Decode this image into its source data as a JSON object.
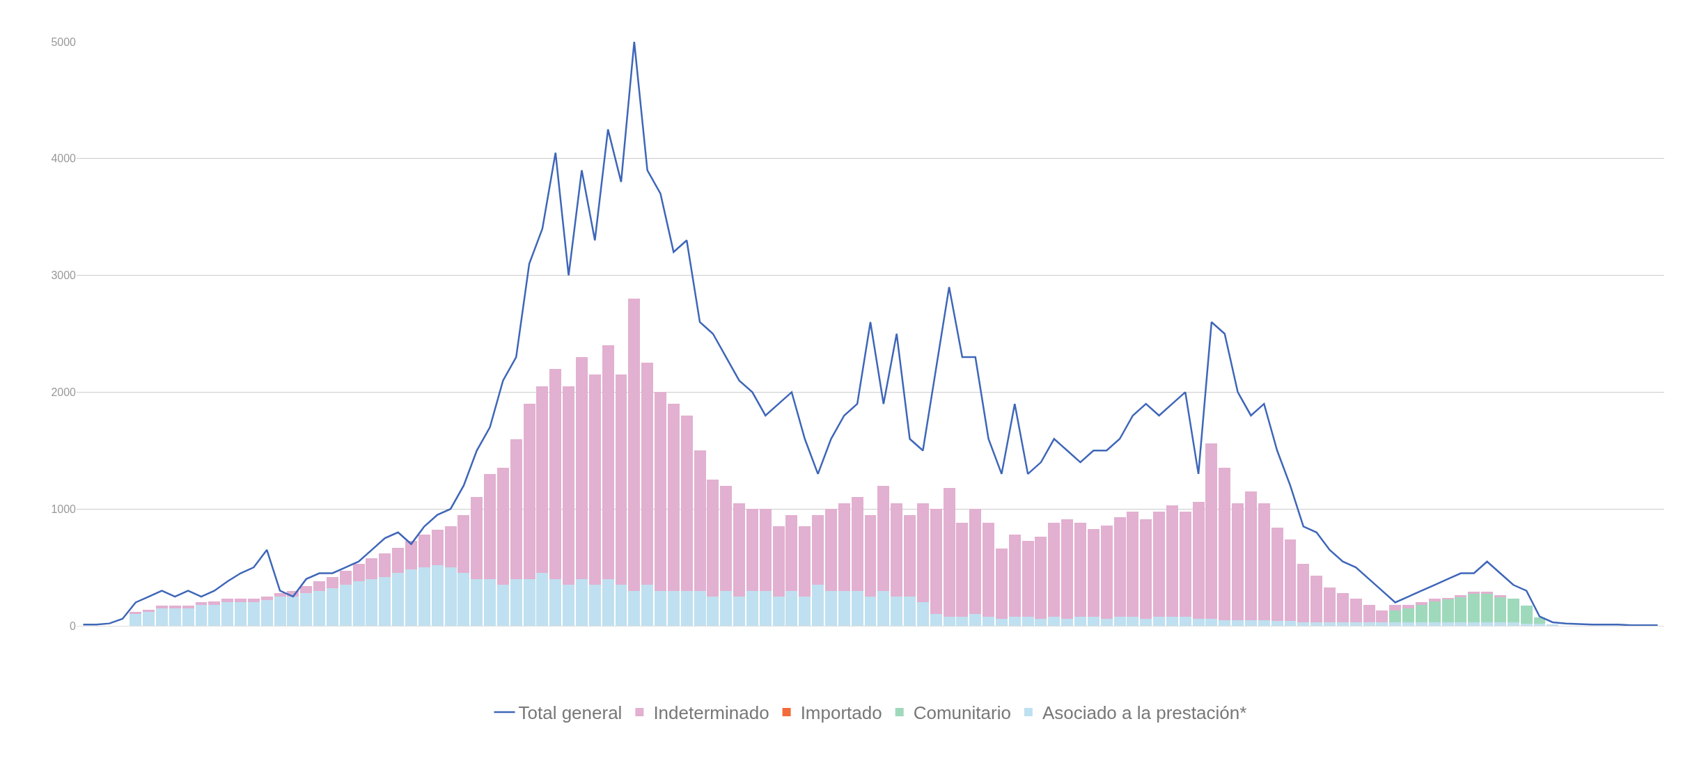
{
  "chart_data": {
    "type": "bar",
    "categories": [
      null,
      null,
      null,
      null,
      null,
      null,
      null,
      null,
      null,
      null,
      null,
      null,
      null,
      null,
      null,
      null,
      null,
      null,
      null,
      null,
      null,
      null,
      null,
      null,
      null,
      null,
      null,
      null,
      null,
      null,
      null,
      null,
      null,
      null,
      null,
      null,
      null,
      null,
      null,
      null,
      null,
      null,
      null,
      null,
      null,
      null,
      null,
      null,
      null,
      null,
      null,
      null,
      null,
      null,
      null,
      null,
      null,
      null,
      null,
      null,
      null,
      null,
      null,
      null,
      null,
      null,
      null,
      null,
      null,
      null,
      null,
      null,
      null,
      null,
      null,
      null,
      null,
      null,
      null,
      null,
      null,
      null,
      null,
      null,
      null,
      null,
      null,
      null,
      null,
      null,
      null,
      null,
      null,
      null,
      null,
      null,
      null,
      null,
      null,
      null,
      null,
      null,
      null,
      null,
      null,
      null,
      null,
      null,
      null,
      null,
      null,
      null,
      null,
      null,
      null,
      null,
      null,
      null,
      null,
      null,
      null
    ],
    "ylim": [
      0,
      5000
    ],
    "stacked": true,
    "yticks": [
      0,
      1000,
      2000,
      3000,
      4000,
      5000
    ],
    "grid": "y",
    "legend": "bottom",
    "series": [
      {
        "name": "Asociado a la prestación*",
        "color": "#bfe0f0",
        "values": [
          0,
          0,
          0,
          0,
          100,
          120,
          150,
          150,
          150,
          180,
          180,
          200,
          200,
          200,
          220,
          250,
          250,
          280,
          300,
          320,
          350,
          380,
          400,
          420,
          450,
          480,
          500,
          520,
          500,
          450,
          400,
          400,
          350,
          400,
          400,
          450,
          400,
          350,
          400,
          350,
          400,
          350,
          300,
          350,
          300,
          300,
          300,
          300,
          250,
          300,
          250,
          300,
          300,
          250,
          300,
          250,
          350,
          300,
          300,
          300,
          250,
          300,
          250,
          250,
          200,
          100,
          80,
          80,
          100,
          80,
          60,
          80,
          80,
          60,
          80,
          60,
          80,
          80,
          60,
          80,
          80,
          60,
          80,
          80,
          80,
          60,
          60,
          50,
          50,
          50,
          50,
          40,
          40,
          30,
          30,
          30,
          30,
          30,
          30,
          30,
          30,
          30,
          30,
          30,
          30,
          30,
          30,
          30,
          30,
          30,
          20,
          20,
          10,
          0,
          0,
          0,
          0,
          0,
          0,
          0,
          0
        ]
      },
      {
        "name": "Comunitario",
        "color": "#9fd9bb",
        "values": [
          0,
          0,
          0,
          0,
          0,
          0,
          0,
          0,
          0,
          0,
          0,
          0,
          0,
          0,
          0,
          0,
          0,
          0,
          0,
          0,
          0,
          0,
          0,
          0,
          0,
          0,
          0,
          0,
          0,
          0,
          0,
          0,
          0,
          0,
          0,
          0,
          0,
          0,
          0,
          0,
          0,
          0,
          0,
          0,
          0,
          0,
          0,
          0,
          0,
          0,
          0,
          0,
          0,
          0,
          0,
          0,
          0,
          0,
          0,
          0,
          0,
          0,
          0,
          0,
          0,
          0,
          0,
          0,
          0,
          0,
          0,
          0,
          0,
          0,
          0,
          0,
          0,
          0,
          0,
          0,
          0,
          0,
          0,
          0,
          0,
          0,
          0,
          0,
          0,
          0,
          0,
          0,
          0,
          0,
          0,
          0,
          0,
          0,
          0,
          0,
          100,
          120,
          150,
          180,
          200,
          220,
          250,
          250,
          220,
          200,
          150,
          50,
          0,
          0,
          0,
          0,
          0,
          0,
          0,
          0,
          0
        ]
      },
      {
        "name": "Importado",
        "color": "#f26b3a",
        "values": [
          0,
          0,
          0,
          0,
          0,
          0,
          0,
          0,
          0,
          0,
          0,
          0,
          0,
          0,
          0,
          0,
          0,
          0,
          0,
          0,
          0,
          0,
          0,
          0,
          0,
          0,
          0,
          0,
          0,
          0,
          0,
          0,
          0,
          0,
          0,
          0,
          0,
          0,
          0,
          0,
          0,
          0,
          0,
          0,
          0,
          0,
          0,
          0,
          0,
          0,
          0,
          0,
          0,
          0,
          0,
          0,
          0,
          0,
          0,
          0,
          0,
          0,
          0,
          0,
          0,
          0,
          0,
          0,
          0,
          0,
          0,
          0,
          0,
          0,
          0,
          0,
          0,
          0,
          0,
          0,
          0,
          0,
          0,
          0,
          0,
          0,
          0,
          0,
          0,
          0,
          0,
          0,
          0,
          0,
          0,
          0,
          0,
          0,
          0,
          0,
          0,
          0,
          0,
          0,
          0,
          0,
          0,
          0,
          0,
          0,
          0,
          0,
          0,
          0,
          0,
          0,
          0,
          0,
          0,
          0,
          0
        ]
      },
      {
        "name": "Indeterminado",
        "color": "#e2b0d0",
        "values": [
          0,
          0,
          0,
          0,
          20,
          20,
          20,
          20,
          20,
          20,
          30,
          30,
          30,
          30,
          30,
          30,
          50,
          60,
          80,
          100,
          120,
          150,
          180,
          200,
          220,
          250,
          280,
          300,
          350,
          500,
          700,
          900,
          1000,
          1200,
          1500,
          1600,
          1800,
          1700,
          1900,
          1800,
          2000,
          1800,
          2500,
          1900,
          1700,
          1600,
          1500,
          1200,
          1000,
          900,
          800,
          700,
          700,
          600,
          650,
          600,
          600,
          700,
          750,
          800,
          700,
          900,
          800,
          700,
          850,
          900,
          1100,
          800,
          900,
          800,
          600,
          700,
          650,
          700,
          800,
          850,
          800,
          750,
          800,
          850,
          900,
          850,
          900,
          950,
          900,
          1000,
          1500,
          1300,
          1000,
          1100,
          1000,
          800,
          700,
          500,
          400,
          300,
          250,
          200,
          150,
          100,
          50,
          30,
          20,
          20,
          10,
          10,
          10,
          10,
          10,
          0,
          0,
          0,
          0,
          0,
          0,
          0,
          0,
          0,
          0,
          0,
          0
        ]
      },
      {
        "name": "Total general",
        "type": "line",
        "color": "#3e66b8",
        "values": [
          10,
          10,
          20,
          60,
          200,
          250,
          300,
          250,
          300,
          250,
          300,
          380,
          450,
          500,
          650,
          300,
          250,
          400,
          450,
          450,
          500,
          550,
          650,
          750,
          800,
          700,
          850,
          950,
          1000,
          1200,
          1500,
          1700,
          2100,
          2300,
          3100,
          3400,
          4050,
          3000,
          3900,
          3300,
          4250,
          3800,
          5000,
          3900,
          3700,
          3200,
          3300,
          2600,
          2500,
          2300,
          2100,
          2000,
          1800,
          1900,
          2000,
          1600,
          1300,
          1600,
          1800,
          1900,
          2600,
          1900,
          2500,
          1600,
          1500,
          2200,
          2900,
          2300,
          2300,
          1600,
          1300,
          1900,
          1300,
          1400,
          1600,
          1500,
          1400,
          1500,
          1500,
          1600,
          1800,
          1900,
          1800,
          1900,
          2000,
          1300,
          2600,
          2500,
          2000,
          1800,
          1900,
          1500,
          1200,
          850,
          800,
          650,
          550,
          500,
          400,
          300,
          200,
          250,
          300,
          350,
          400,
          450,
          450,
          550,
          450,
          350,
          300,
          80,
          30,
          20,
          15,
          10,
          10,
          10,
          5,
          5,
          5
        ]
      }
    ]
  }
}
